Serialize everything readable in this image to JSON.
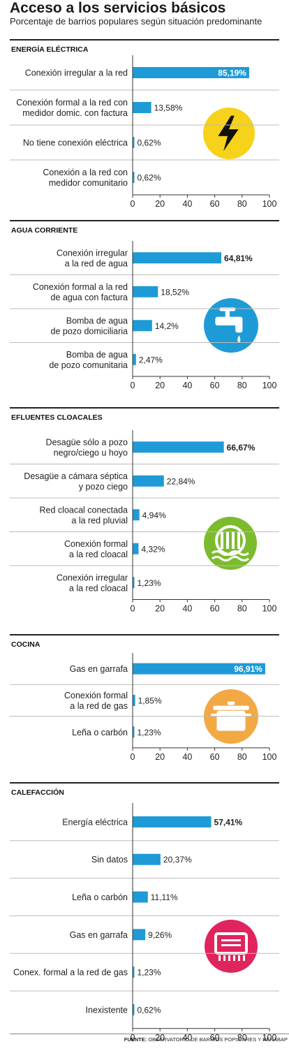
{
  "title": "Acceso a los servicios básicos",
  "subtitle": "Porcentaje de barrios populares según situación predominante",
  "footer": {
    "label": "FUENTE:",
    "text": "OBSERVATORIO DE BARRIOS POPULARES Y RENABAP"
  },
  "colors": {
    "bar": "#1e9bd7",
    "rule": "#222222",
    "axis": "#333333",
    "separator": "#bbbbbb"
  },
  "chart_data": [
    {
      "type": "bar",
      "orientation": "horizontal",
      "title": "ENERGÍA ELÉCTRICA",
      "icon": {
        "name": "lightning-icon",
        "color": "#f6d21b"
      },
      "categories": [
        [
          "Conexión irregular a la red"
        ],
        [
          "Conexión formal a la red con",
          "medidor domic. con factura"
        ],
        [
          "No tiene conexión eléctrica"
        ],
        [
          "Conexión a la red con",
          "medidor comunitario"
        ]
      ],
      "values": [
        85.19,
        13.58,
        0.62,
        0.62
      ],
      "value_labels": [
        "85,19%",
        "13,58%",
        "0,62%",
        "0,62%"
      ],
      "highlight_index": 0,
      "highlight_label_inside": true,
      "xlim": [
        0,
        100
      ],
      "xticks": [
        "0",
        "20",
        "40",
        "60",
        "80",
        "100"
      ]
    },
    {
      "type": "bar",
      "orientation": "horizontal",
      "title": "AGUA CORRIENTE",
      "icon": {
        "name": "faucet-icon",
        "color": "#1e9bd7"
      },
      "categories": [
        [
          "Conexión irregular",
          "a la red de agua"
        ],
        [
          "Conexión formal a la red",
          "de agua con factura"
        ],
        [
          "Bomba de agua",
          "de pozo domiciliaria"
        ],
        [
          "Bomba de agua",
          "de pozo comunitaria"
        ]
      ],
      "values": [
        64.81,
        18.52,
        14.2,
        2.47
      ],
      "value_labels": [
        "64,81%",
        "18,52%",
        "14,2%",
        "2,47%"
      ],
      "highlight_index": 0,
      "highlight_label_inside": false,
      "xlim": [
        0,
        100
      ],
      "xticks": [
        "0",
        "20",
        "40",
        "60",
        "80",
        "100"
      ]
    },
    {
      "type": "bar",
      "orientation": "horizontal",
      "title": "EFLUENTES CLOACALES",
      "icon": {
        "name": "sewage-icon",
        "color": "#7dbb2e"
      },
      "categories": [
        [
          "Desagüe sólo a pozo",
          "negro/ciego u hoyo"
        ],
        [
          "Desagüe a cámara séptica",
          "y pozo ciego"
        ],
        [
          "Red cloacal conectada",
          "a la red pluvial"
        ],
        [
          "Conexión formal",
          "a la red cloacal"
        ],
        [
          "Conexión irregular",
          "a la red cloacal"
        ]
      ],
      "values": [
        66.67,
        22.84,
        4.94,
        4.32,
        1.23
      ],
      "value_labels": [
        "66,67%",
        "22,84%",
        "4,94%",
        "4,32%",
        "1,23%"
      ],
      "highlight_index": 0,
      "highlight_label_inside": false,
      "xlim": [
        0,
        100
      ],
      "xticks": [
        "0",
        "20",
        "40",
        "60",
        "80",
        "100"
      ]
    },
    {
      "type": "bar",
      "orientation": "horizontal",
      "title": "COCINA",
      "icon": {
        "name": "cooking-pot-icon",
        "color": "#f2a944"
      },
      "categories": [
        [
          "Gas en garrafa"
        ],
        [
          "Conexión formal",
          "a la red de gas"
        ],
        [
          "Leña o carbón"
        ]
      ],
      "values": [
        96.91,
        1.85,
        1.23
      ],
      "value_labels": [
        "96,91%",
        "1,85%",
        "1,23%"
      ],
      "highlight_index": 0,
      "highlight_label_inside": true,
      "xlim": [
        0,
        100
      ],
      "xticks": [
        "0",
        "20",
        "40",
        "60",
        "80",
        "100"
      ]
    },
    {
      "type": "bar",
      "orientation": "horizontal",
      "title": "CALEFACCIÓN",
      "icon": {
        "name": "heater-icon",
        "color": "#e0245e"
      },
      "categories": [
        [
          "Energía eléctrica"
        ],
        [
          "Sin datos"
        ],
        [
          "Leña o carbón"
        ],
        [
          "Gas en garrafa"
        ],
        [
          "Conex. formal a la red de gas"
        ],
        [
          "Inexistente"
        ]
      ],
      "values": [
        57.41,
        20.37,
        11.11,
        9.26,
        1.23,
        0.62
      ],
      "value_labels": [
        "57,41%",
        "20,37%",
        "11,11%",
        "9,26%",
        "1,23%",
        "0,62%"
      ],
      "highlight_index": 0,
      "highlight_label_inside": false,
      "xlim": [
        0,
        100
      ],
      "xticks": [
        "0",
        "20",
        "40",
        "60",
        "80",
        "100"
      ]
    }
  ]
}
